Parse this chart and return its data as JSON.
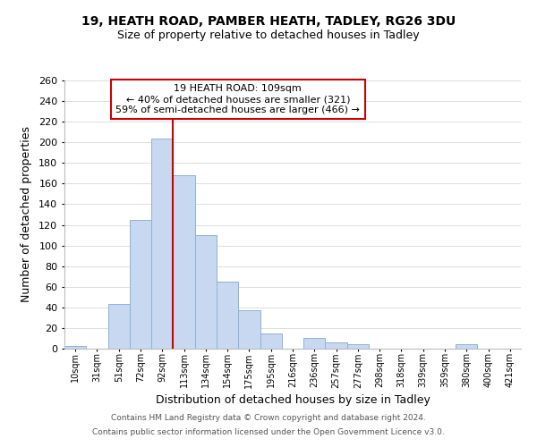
{
  "title_line1": "19, HEATH ROAD, PAMBER HEATH, TADLEY, RG26 3DU",
  "title_line2": "Size of property relative to detached houses in Tadley",
  "xlabel": "Distribution of detached houses by size in Tadley",
  "ylabel": "Number of detached properties",
  "bar_color": "#c8d8f0",
  "bar_edge_color": "#8ab4d8",
  "categories": [
    "10sqm",
    "31sqm",
    "51sqm",
    "72sqm",
    "92sqm",
    "113sqm",
    "134sqm",
    "154sqm",
    "175sqm",
    "195sqm",
    "216sqm",
    "236sqm",
    "257sqm",
    "277sqm",
    "298sqm",
    "318sqm",
    "339sqm",
    "359sqm",
    "380sqm",
    "400sqm",
    "421sqm"
  ],
  "values": [
    3,
    0,
    43,
    125,
    204,
    168,
    110,
    65,
    37,
    15,
    0,
    10,
    6,
    4,
    0,
    0,
    0,
    0,
    4,
    0,
    0
  ],
  "ylim": [
    0,
    260
  ],
  "yticks": [
    0,
    20,
    40,
    60,
    80,
    100,
    120,
    140,
    160,
    180,
    200,
    220,
    240,
    260
  ],
  "vline_x": 4.5,
  "vline_color": "#cc0000",
  "annotation_title": "19 HEATH ROAD: 109sqm",
  "annotation_line1": "← 40% of detached houses are smaller (321)",
  "annotation_line2": "59% of semi-detached houses are larger (466) →",
  "annotation_box_color": "#ffffff",
  "annotation_box_edge": "#cc0000",
  "footer_line1": "Contains HM Land Registry data © Crown copyright and database right 2024.",
  "footer_line2": "Contains public sector information licensed under the Open Government Licence v3.0.",
  "background_color": "#ffffff",
  "grid_color": "#dddddd"
}
